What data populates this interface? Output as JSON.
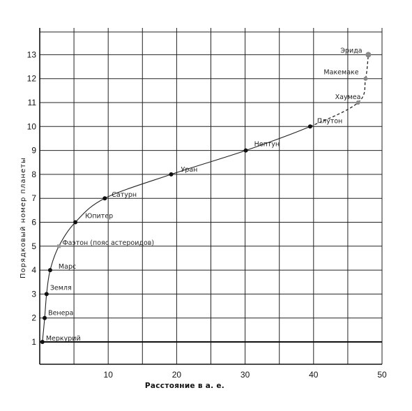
{
  "chart_data": {
    "type": "line",
    "xlabel": "Расстояние в а. е.",
    "ylabel": "Порядковый номер планеты",
    "xlim": [
      0,
      50
    ],
    "ylim": [
      0,
      14
    ],
    "x_ticks": [
      10,
      20,
      30,
      40,
      50
    ],
    "y_ticks": [
      1,
      2,
      3,
      4,
      5,
      6,
      7,
      8,
      9,
      10,
      11,
      12,
      13
    ],
    "grid": true,
    "points": [
      {
        "label": "Меркурий",
        "x": 0.39,
        "y": 1,
        "style": "solid"
      },
      {
        "label": "Венера",
        "x": 0.72,
        "y": 2,
        "style": "solid"
      },
      {
        "label": "Земля",
        "x": 1.0,
        "y": 3,
        "style": "solid"
      },
      {
        "label": "Марс",
        "x": 1.52,
        "y": 4,
        "style": "solid"
      },
      {
        "label": "Фаэтон (пояс астероидов)",
        "x": 2.8,
        "y": 5,
        "style": "solid"
      },
      {
        "label": "Юпитер",
        "x": 5.2,
        "y": 6,
        "style": "solid"
      },
      {
        "label": "Сатурн",
        "x": 9.5,
        "y": 7,
        "style": "solid"
      },
      {
        "label": "Уран",
        "x": 19.2,
        "y": 8,
        "style": "solid"
      },
      {
        "label": "Нептун",
        "x": 30.1,
        "y": 9,
        "style": "solid"
      },
      {
        "label": "Плутон",
        "x": 39.5,
        "y": 10,
        "style": "solid"
      },
      {
        "label": "Хаумеа",
        "x": 46.5,
        "y": 11,
        "style": "dashed"
      },
      {
        "label": "Макемаке",
        "x": 47.6,
        "y": 12,
        "style": "dashed"
      },
      {
        "label": "Эрида",
        "x": 48.0,
        "y": 13,
        "style": "dashed"
      }
    ]
  }
}
